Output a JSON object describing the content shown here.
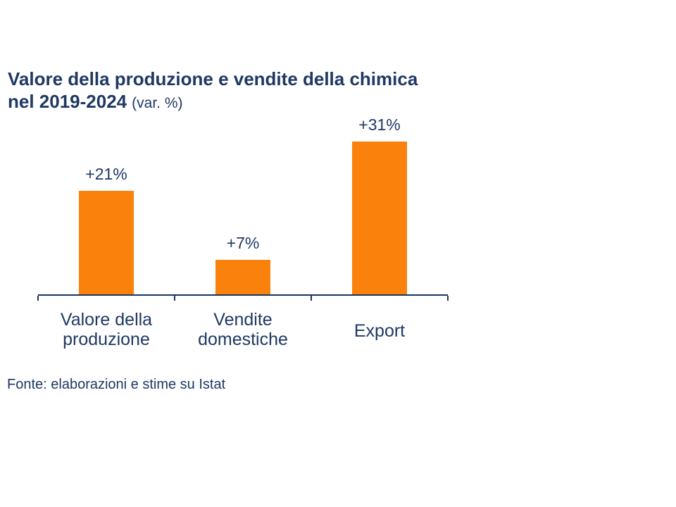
{
  "title": {
    "line1": "Valore della produzione e vendite della chimica",
    "line2_bold": "nel 2019-2024",
    "line2_note": "(var. %)"
  },
  "chart_data": {
    "type": "bar",
    "title": "Valore della produzione e vendite della chimica nel 2019-2024 (var. %)",
    "categories": [
      "Valore della produzione",
      "Vendite domestiche",
      "Export"
    ],
    "category_label_lines": [
      [
        "Valore della",
        "produzione"
      ],
      [
        "Vendite",
        "domestiche"
      ],
      [
        "Export"
      ]
    ],
    "values": [
      21,
      7,
      31
    ],
    "value_labels": [
      "+21%",
      "+7%",
      "+31%"
    ],
    "xlabel": "",
    "ylabel": "",
    "ylim": [
      0,
      35
    ],
    "grid": "off",
    "legend": "none",
    "bar_color": "#F9810C",
    "text_color": "#1F3864",
    "axis_color": "#17365D"
  },
  "source": "Fonte: elaborazioni e stime su Istat"
}
